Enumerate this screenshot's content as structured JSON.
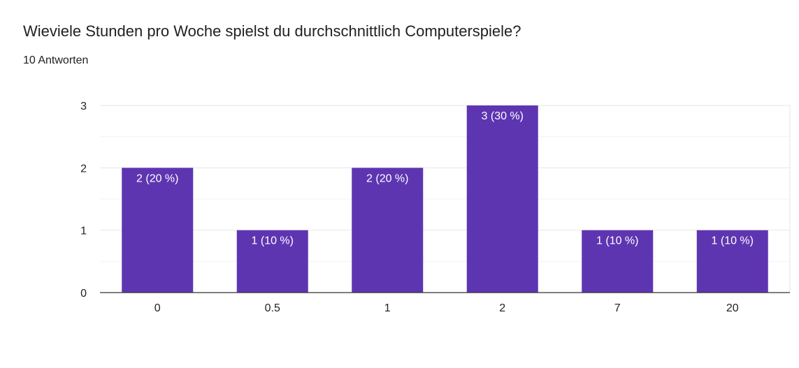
{
  "header": {
    "question": "Wieviele Stunden pro Woche spielst du durchschnittlich Computerspiele?",
    "responses": "10 Antworten"
  },
  "colors": {
    "bar": "#5e35b1",
    "grid": "#e6e6e6",
    "axis": "#333333",
    "label": "#ffffff"
  },
  "chart_data": {
    "type": "bar",
    "categories": [
      "0",
      "0.5",
      "1",
      "2",
      "7",
      "20"
    ],
    "values": [
      2,
      1,
      2,
      3,
      1,
      1
    ],
    "data_labels": [
      "2 (20 %)",
      "1 (10 %)",
      "2 (20 %)",
      "3 (30 %)",
      "1 (10 %)",
      "1 (10 %)"
    ],
    "title": "Wieviele Stunden pro Woche spielst du durchschnittlich Computerspiele?",
    "xlabel": "",
    "ylabel": "",
    "ylim": [
      0,
      3
    ],
    "yticks": [
      0,
      1,
      2,
      3
    ],
    "grid": true,
    "legend": "none"
  }
}
